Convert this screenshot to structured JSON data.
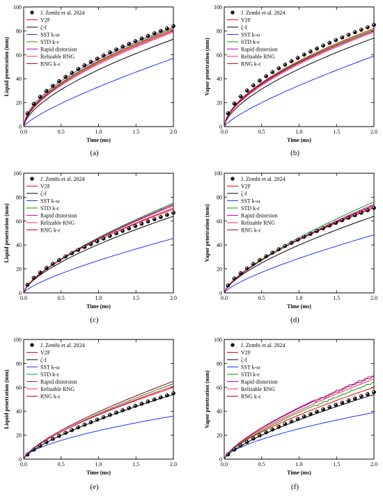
{
  "figure": {
    "legend_names": [
      "J. Zembi et al. 2024",
      "V2F",
      "ζ-f",
      "SST k-ω",
      "STD k-ε",
      "Rapid distorsion",
      "Relizable RNG",
      "RNG k-ε"
    ],
    "x_ticks": [
      "0.0",
      "0.5",
      "1.0",
      "1.5",
      "2.0"
    ],
    "y_ticks": [
      "0",
      "20",
      "40",
      "60",
      "80",
      "100"
    ]
  },
  "colors": {
    "V2F": "#ff0000",
    "ζ-f": "#000000",
    "SST k-ω": "#1a33ff",
    "STD k-ε": "#00a000",
    "Rapid distorsion": "#c000c0",
    "Relizable RNG": "#ff2080",
    "RNG k-ε": "#a01020"
  },
  "chart_data": [
    {
      "type": "line",
      "panel": "(a)",
      "xlabel": "Time (ms)",
      "ylabel": "Liquid penetration (mm)",
      "xlim": [
        0,
        2
      ],
      "ylim": [
        0,
        100
      ],
      "legend": "top-left",
      "grid": false,
      "experiment": {
        "name": "J. Zembi et al. 2024",
        "end": 84.0,
        "p": 0.55
      },
      "series": [
        {
          "name": "V2F",
          "end": 81.0,
          "p": 0.58
        },
        {
          "name": "ζ-f",
          "end": 73.0,
          "p": 0.62
        },
        {
          "name": "SST k-ω",
          "end": 57.0,
          "p": 0.78
        },
        {
          "name": "STD k-ε",
          "end": 82.0,
          "p": 0.58
        },
        {
          "name": "Rapid distorsion",
          "end": 83.0,
          "p": 0.56
        },
        {
          "name": "Relizable RNG",
          "end": 79.0,
          "p": 0.6
        },
        {
          "name": "RNG k-ε",
          "end": 80.0,
          "p": 0.59
        }
      ]
    },
    {
      "type": "line",
      "panel": "(b)",
      "xlabel": "Time (ms)",
      "ylabel": "Vapor penetration (mm)",
      "xlim": [
        0,
        2
      ],
      "ylim": [
        0,
        100
      ],
      "legend": "top-left",
      "grid": false,
      "experiment": {
        "name": "J. Zembi et al. 2024",
        "end": 85.0,
        "p": 0.55
      },
      "series": [
        {
          "name": "V2F",
          "end": 82.0,
          "p": 0.58
        },
        {
          "name": "ζ-f",
          "end": 74.0,
          "p": 0.62
        },
        {
          "name": "SST k-ω",
          "end": 59.0,
          "p": 0.78
        },
        {
          "name": "STD k-ε",
          "end": 81.0,
          "p": 0.58
        },
        {
          "name": "Rapid distorsion",
          "end": 80.0,
          "p": 0.58
        },
        {
          "name": "Relizable RNG",
          "end": 79.0,
          "p": 0.6
        },
        {
          "name": "RNG k-ε",
          "end": 80.0,
          "p": 0.59
        }
      ]
    },
    {
      "type": "line",
      "panel": "(c)",
      "xlabel": "Time (ms)",
      "ylabel": "Liquid penetration (mm)",
      "xlim": [
        0,
        2
      ],
      "ylim": [
        0,
        100
      ],
      "legend": "top-left",
      "grid": false,
      "experiment": {
        "name": "J. Zembi et al. 2024",
        "end": 67.0,
        "p": 0.62
      },
      "series": [
        {
          "name": "V2F",
          "end": 70.0,
          "p": 0.66
        },
        {
          "name": "ζ-f",
          "end": 64.0,
          "p": 0.66
        },
        {
          "name": "SST k-ω",
          "end": 45.5,
          "p": 0.75
        },
        {
          "name": "STD k-ε",
          "end": 75.0,
          "p": 0.7
        },
        {
          "name": "Rapid distorsion",
          "end": 74.0,
          "p": 0.7
        },
        {
          "name": "Relizable RNG",
          "end": 71.0,
          "p": 0.68
        },
        {
          "name": "RNG k-ε",
          "end": 73.0,
          "p": 0.69
        }
      ]
    },
    {
      "type": "line",
      "panel": "(d)",
      "xlabel": "Time (ms)",
      "ylabel": "Vapor penetration (mm)",
      "xlim": [
        0,
        2
      ],
      "ylim": [
        0,
        100
      ],
      "legend": "top-left",
      "grid": false,
      "experiment": {
        "name": "J. Zembi et al. 2024",
        "end": 71.0,
        "p": 0.66
      },
      "series": [
        {
          "name": "V2F",
          "end": 71.0,
          "p": 0.68
        },
        {
          "name": "ζ-f",
          "end": 64.0,
          "p": 0.68
        },
        {
          "name": "SST k-ω",
          "end": 48.5,
          "p": 0.75
        },
        {
          "name": "STD k-ε",
          "end": 76.0,
          "p": 0.72
        },
        {
          "name": "Rapid distorsion",
          "end": 74.0,
          "p": 0.72
        },
        {
          "name": "Relizable RNG",
          "end": 72.0,
          "p": 0.7
        },
        {
          "name": "RNG k-ε",
          "end": 73.0,
          "p": 0.71
        }
      ]
    },
    {
      "type": "line",
      "panel": "(e)",
      "xlabel": "Time (ms)",
      "ylabel": "Liquid penetration (mm)",
      "xlim": [
        0,
        2
      ],
      "ylim": [
        0,
        100
      ],
      "legend": "top-left",
      "grid": false,
      "experiment": {
        "name": "J. Zembi et al. 2024",
        "end": 55.0,
        "p": 0.72
      },
      "series": [
        {
          "name": "V2F",
          "end": 60.0,
          "p": 0.7
        },
        {
          "name": "ζ-f",
          "end": 54.0,
          "p": 0.72
        },
        {
          "name": "SST k-ω",
          "end": 36.0,
          "p": 0.6
        },
        {
          "name": "STD k-ε",
          "end": 63.0,
          "p": 0.73
        },
        {
          "name": "Rapid distorsion",
          "end": 65.0,
          "p": 0.72
        },
        {
          "name": "Relizable RNG",
          "end": 61.0,
          "p": 0.71
        },
        {
          "name": "RNG k-ε",
          "end": 65.0,
          "p": 0.72
        }
      ]
    },
    {
      "type": "line",
      "panel": "(f)",
      "xlabel": "Time (ms)",
      "ylabel": "Vapor penetration (mm)",
      "xlim": [
        0,
        2
      ],
      "ylim": [
        0,
        100
      ],
      "legend": "top-left",
      "grid": false,
      "experiment": {
        "name": "J. Zembi et al. 2024",
        "end": 56.0,
        "p": 0.72
      },
      "series": [
        {
          "name": "V2F",
          "end": 60.0,
          "p": 0.7
        },
        {
          "name": "ζ-f",
          "end": 54.0,
          "p": 0.72
        },
        {
          "name": "SST k-ω",
          "end": 39.0,
          "p": 0.62
        },
        {
          "name": "STD k-ε",
          "end": 65.0,
          "p": 0.73,
          "steps": true
        },
        {
          "name": "Rapid distorsion",
          "end": 71.0,
          "p": 0.72,
          "steps": true
        },
        {
          "name": "Relizable RNG",
          "end": 67.0,
          "p": 0.72
        },
        {
          "name": "RNG k-ε",
          "end": 70.0,
          "p": 0.72,
          "steps": true
        }
      ]
    }
  ]
}
